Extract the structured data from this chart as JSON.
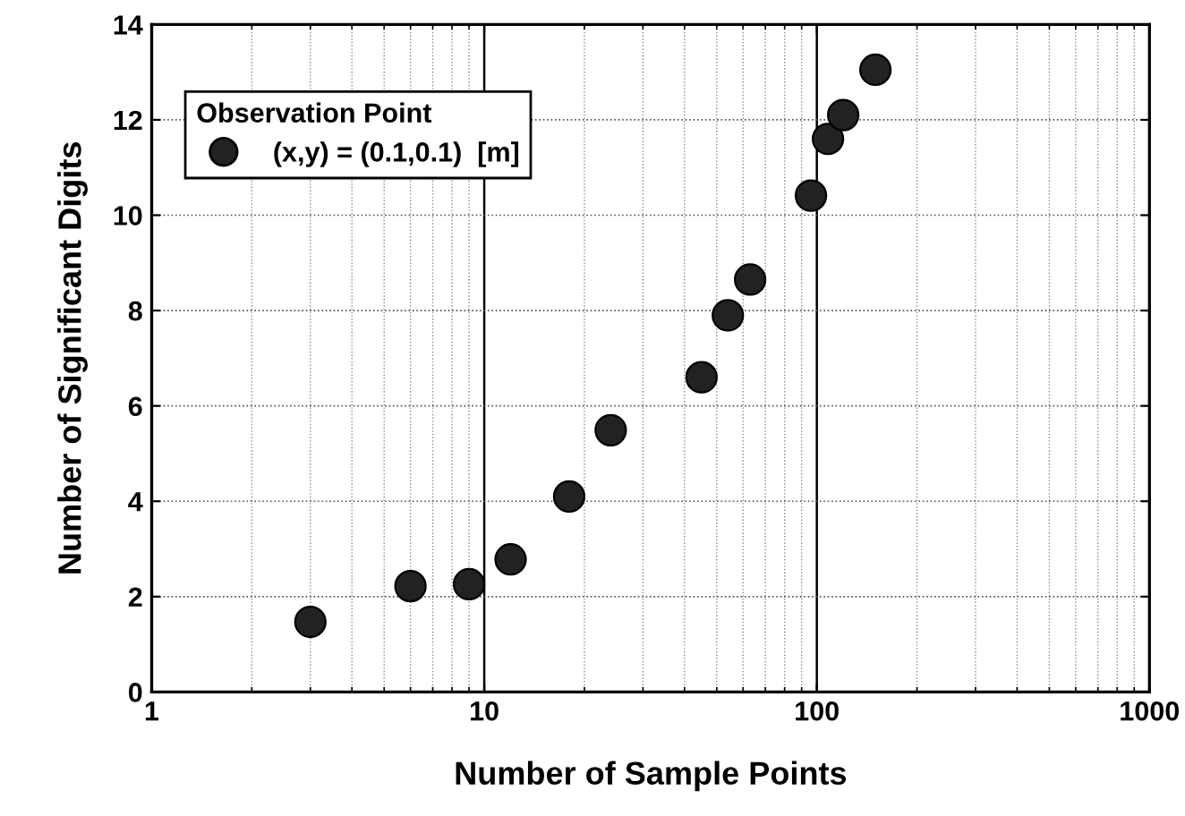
{
  "chart_data": {
    "type": "scatter",
    "xlabel": "Number of Sample Points",
    "ylabel": "Number of Significant Digits",
    "legend_title": "Observation Point",
    "legend": "top left",
    "grid": true,
    "log": "x",
    "marker": "circle",
    "xlim": [
      1,
      1000
    ],
    "xticks": [
      1,
      10,
      100,
      1000
    ],
    "ylim": [
      0,
      14
    ],
    "yticks": [
      0,
      2,
      4,
      6,
      8,
      10,
      12,
      14
    ],
    "series": [
      {
        "name": "(x,y) = (0.1,0.1)  [m]",
        "color": "#222222",
        "x": [
          3,
          6,
          9,
          12,
          18,
          24,
          45,
          54,
          63,
          96,
          108,
          120,
          150
        ],
        "values": [
          1.47,
          2.22,
          2.26,
          2.78,
          4.1,
          5.49,
          6.6,
          7.9,
          8.65,
          10.41,
          11.6,
          12.1,
          13.05
        ]
      }
    ]
  }
}
